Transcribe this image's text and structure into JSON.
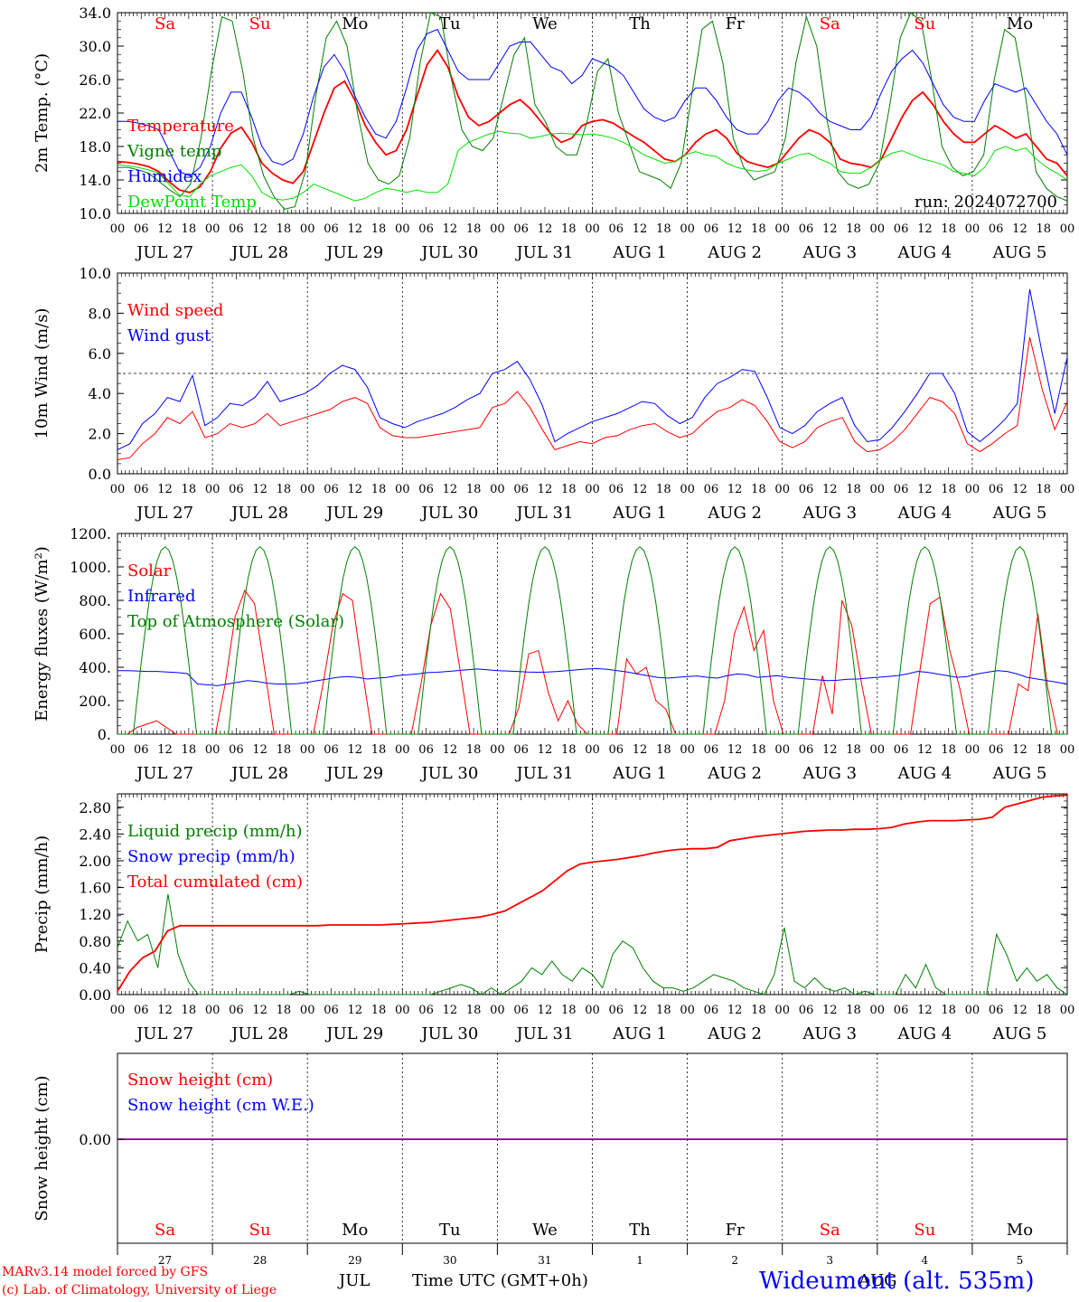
{
  "colors": {
    "red": "#ff0000",
    "green": "#008000",
    "blue": "#0000ff",
    "lime": "#00e000",
    "purple": "#800080",
    "grid": "#000000"
  },
  "days": [
    "JUL 27",
    "JUL 28",
    "JUL 29",
    "JUL 30",
    "JUL 31",
    "AUG  1",
    "AUG  2",
    "AUG  3",
    "AUG  4",
    "AUG  5"
  ],
  "weekdays": [
    "Sa",
    "Su",
    "Mo",
    "Tu",
    "We",
    "Th",
    "Fr",
    "Sa",
    "Su",
    "Mo"
  ],
  "weekday_colors": [
    "red",
    "red",
    "black",
    "black",
    "black",
    "black",
    "black",
    "red",
    "red",
    "black"
  ],
  "hour_ticks": [
    "00",
    "06",
    "12",
    "18"
  ],
  "bottom_day_numbers": [
    "27",
    "28",
    "29",
    "30",
    "31",
    "1",
    "2",
    "3",
    "4",
    "5"
  ],
  "footer": {
    "month_left": "JUL",
    "month_right": "AUG",
    "axis_title": "Time UTC (GMT+0h)",
    "credit_1": "MARv3.14 model forced by GFS",
    "credit_2": "(c) Lab. of Climatology, University of Liege",
    "station": "Wideumont (alt. 535m)"
  },
  "chart_data": [
    {
      "type": "line",
      "ylabel": "2m Temp. (°C)",
      "ylim": [
        10,
        34
      ],
      "yticks": [
        "10.0",
        "14.0",
        "18.0",
        "22.0",
        "26.0",
        "30.0",
        "34.0"
      ],
      "x_unit": "hours since JUL 27 00 UTC, 3-hourly",
      "run_label": "run: 2024072700",
      "series": [
        {
          "name": "Temperature",
          "color": "red",
          "values": [
            16.2,
            16.1,
            15.9,
            15.6,
            15.0,
            13.8,
            12.8,
            12.5,
            13.2,
            15.0,
            17.8,
            19.6,
            20.3,
            18.5,
            16.0,
            14.8,
            14.0,
            13.6,
            15.0,
            18.5,
            22.0,
            25.0,
            25.8,
            23.5,
            20.5,
            18.5,
            17.0,
            17.5,
            20.0,
            24.0,
            27.8,
            29.5,
            27.5,
            24.0,
            21.5,
            20.5,
            21.0,
            22.0,
            23.0,
            23.6,
            22.5,
            21.0,
            19.5,
            18.5,
            19.0,
            20.5,
            21.0,
            21.2,
            20.8,
            20.0,
            19.2,
            18.5,
            17.5,
            16.5,
            16.2,
            17.0,
            18.5,
            19.5,
            20.0,
            19.0,
            17.2,
            16.2,
            15.8,
            15.5,
            16.0,
            17.5,
            19.0,
            20.0,
            19.5,
            18.5,
            16.5,
            16.0,
            15.8,
            15.5,
            16.5,
            19.0,
            21.5,
            23.5,
            24.5,
            23.0,
            21.0,
            19.5,
            18.5,
            18.5,
            19.5,
            20.5,
            19.8,
            19.0,
            19.5,
            18.0,
            16.5,
            16.0,
            14.5
          ]
        },
        {
          "name": "Vigne temp",
          "color": "green",
          "values": [
            15.5,
            15.5,
            15.2,
            14.8,
            13.8,
            12.8,
            12.0,
            13.5,
            19.0,
            27.0,
            33.5,
            33.0,
            27.0,
            19.0,
            14.5,
            12.0,
            10.5,
            10.8,
            15.0,
            24.0,
            31.0,
            33.0,
            30.0,
            22.0,
            16.0,
            14.0,
            13.5,
            14.5,
            19.0,
            28.0,
            34.0,
            33.5,
            26.0,
            20.0,
            18.0,
            17.5,
            19.0,
            24.0,
            29.0,
            31.0,
            23.0,
            21.0,
            18.0,
            17.0,
            17.0,
            21.0,
            27.0,
            28.5,
            22.0,
            18.5,
            15.0,
            14.5,
            14.0,
            13.0,
            16.0,
            24.0,
            32.0,
            33.0,
            28.0,
            19.0,
            15.5,
            14.0,
            14.5,
            15.0,
            19.0,
            28.0,
            33.5,
            30.0,
            21.0,
            15.0,
            13.5,
            13.0,
            13.5,
            16.0,
            23.0,
            31.0,
            34.0,
            33.0,
            26.0,
            18.0,
            15.5,
            14.5,
            15.0,
            17.0,
            26.0,
            32.0,
            31.0,
            24.0,
            15.0,
            13.0,
            12.0,
            11.5
          ]
        },
        {
          "name": "Humidex",
          "color": "blue",
          "values": [
            21.0,
            21.0,
            20.8,
            20.5,
            20.0,
            17.5,
            15.0,
            14.5,
            15.5,
            18.0,
            22.0,
            24.5,
            24.5,
            21.5,
            18.0,
            16.2,
            15.8,
            16.5,
            19.5,
            24.0,
            27.5,
            29.0,
            27.0,
            24.0,
            21.5,
            19.5,
            19.0,
            21.0,
            25.0,
            29.5,
            31.5,
            32.0,
            29.5,
            27.0,
            26.0,
            26.0,
            26.0,
            28.0,
            30.0,
            30.5,
            30.5,
            29.0,
            27.5,
            27.0,
            25.5,
            26.5,
            28.5,
            28.0,
            27.5,
            26.5,
            24.5,
            22.5,
            21.5,
            21.0,
            21.5,
            23.5,
            25.0,
            25.0,
            23.5,
            21.5,
            20.0,
            19.5,
            19.5,
            21.0,
            23.5,
            25.0,
            24.5,
            23.5,
            22.0,
            21.0,
            20.5,
            20.0,
            20.0,
            21.5,
            24.5,
            27.0,
            28.5,
            29.5,
            28.0,
            25.5,
            23.0,
            21.5,
            21.0,
            21.0,
            23.5,
            25.5,
            25.0,
            24.5,
            25.0,
            23.0,
            21.0,
            19.5,
            17.0
          ]
        },
        {
          "name": "DewPoint Temp",
          "color": "lime",
          "values": [
            15.8,
            15.7,
            15.5,
            15.2,
            14.8,
            13.5,
            12.2,
            12.0,
            13.5,
            14.5,
            15.0,
            15.5,
            15.8,
            14.5,
            12.5,
            11.8,
            11.6,
            11.8,
            12.5,
            13.5,
            13.0,
            12.5,
            12.0,
            11.5,
            11.8,
            12.5,
            13.0,
            12.8,
            12.5,
            12.8,
            12.5,
            12.5,
            13.5,
            17.5,
            18.5,
            19.0,
            19.5,
            19.8,
            19.6,
            19.5,
            19.0,
            19.2,
            19.5,
            19.6,
            19.5,
            19.4,
            19.5,
            19.3,
            19.0,
            18.5,
            17.8,
            17.0,
            16.5,
            16.0,
            16.2,
            17.0,
            17.4,
            17.0,
            16.8,
            16.0,
            15.5,
            15.2,
            15.0,
            15.2,
            16.0,
            16.5,
            17.0,
            17.2,
            16.5,
            16.0,
            15.0,
            14.8,
            14.8,
            15.5,
            16.5,
            17.2,
            17.5,
            17.0,
            16.5,
            16.2,
            15.8,
            15.0,
            14.8,
            14.5,
            15.5,
            17.5,
            18.0,
            17.5,
            17.8,
            16.5,
            15.5,
            14.8,
            14.0
          ]
        }
      ]
    },
    {
      "type": "line",
      "ylabel": "10m Wind (m/s)",
      "ylim": [
        0,
        10
      ],
      "yticks": [
        "0.0",
        "2.0",
        "4.0",
        "6.0",
        "8.0",
        "10.0"
      ],
      "reference_line": 5.0,
      "series": [
        {
          "name": "Wind speed",
          "color": "red",
          "values": [
            0.7,
            0.8,
            1.5,
            2.0,
            2.8,
            2.5,
            3.1,
            1.8,
            2.0,
            2.5,
            2.3,
            2.5,
            3.0,
            2.4,
            2.6,
            2.8,
            3.0,
            3.2,
            3.6,
            3.8,
            3.5,
            2.3,
            1.9,
            1.8,
            1.8,
            1.9,
            2.0,
            2.1,
            2.2,
            2.3,
            3.3,
            3.5,
            4.1,
            3.3,
            2.2,
            1.2,
            1.4,
            1.6,
            1.5,
            1.8,
            1.9,
            2.2,
            2.4,
            2.5,
            2.1,
            1.8,
            2.0,
            2.6,
            3.1,
            3.3,
            3.7,
            3.4,
            2.6,
            1.6,
            1.3,
            1.6,
            2.3,
            2.6,
            2.8,
            1.6,
            1.1,
            1.2,
            1.6,
            2.2,
            3.0,
            3.8,
            3.6,
            3.0,
            1.5,
            1.1,
            1.5,
            2.0,
            2.4,
            6.8,
            4.2,
            2.2,
            3.6
          ]
        },
        {
          "name": "Wind gust",
          "color": "blue",
          "values": [
            1.2,
            1.5,
            2.5,
            3.0,
            3.8,
            3.6,
            4.9,
            2.4,
            2.8,
            3.5,
            3.4,
            3.8,
            4.6,
            3.6,
            3.8,
            4.0,
            4.4,
            5.0,
            5.4,
            5.2,
            4.3,
            2.8,
            2.5,
            2.3,
            2.6,
            2.8,
            3.0,
            3.3,
            3.7,
            4.0,
            5.0,
            5.2,
            5.6,
            4.7,
            3.4,
            1.6,
            2.0,
            2.3,
            2.6,
            2.8,
            3.0,
            3.3,
            3.6,
            3.5,
            2.9,
            2.5,
            2.8,
            3.8,
            4.5,
            4.8,
            5.2,
            5.1,
            3.8,
            2.3,
            2.0,
            2.4,
            3.1,
            3.5,
            3.8,
            2.4,
            1.6,
            1.7,
            2.3,
            3.1,
            4.0,
            5.0,
            5.0,
            4.0,
            2.1,
            1.6,
            2.1,
            2.7,
            3.5,
            9.2,
            6.0,
            3.0,
            5.8
          ]
        }
      ]
    },
    {
      "type": "line",
      "ylabel": "Energy fluxes (W/m²)",
      "ylim": [
        0,
        1200
      ],
      "yticks": [
        "0.",
        "200.",
        "400.",
        "600.",
        "800.",
        "1000.",
        "1200."
      ],
      "series": [
        {
          "name": "Solar",
          "color": "red",
          "values": [
            0,
            0,
            40,
            60,
            80,
            40,
            0,
            0,
            0,
            0,
            0,
            300,
            700,
            860,
            780,
            400,
            0,
            0,
            0,
            0,
            0,
            300,
            650,
            840,
            800,
            380,
            0,
            0,
            0,
            0,
            0,
            300,
            650,
            840,
            750,
            380,
            0,
            0,
            0,
            0,
            0,
            160,
            480,
            500,
            250,
            80,
            200,
            60,
            0,
            0,
            0,
            0,
            450,
            360,
            400,
            200,
            150,
            0,
            0,
            0,
            0,
            0,
            200,
            600,
            760,
            500,
            620,
            200,
            0,
            0,
            0,
            0,
            350,
            120,
            800,
            650,
            300,
            0,
            0,
            0,
            0,
            0,
            400,
            780,
            820,
            500,
            280,
            0,
            0,
            0,
            0,
            0,
            300,
            260,
            720,
            280,
            0,
            0
          ]
        },
        {
          "name": "Infrared",
          "color": "blue",
          "values": [
            380,
            380,
            378,
            375,
            375,
            372,
            368,
            362,
            300,
            295,
            290,
            300,
            310,
            320,
            315,
            305,
            300,
            300,
            302,
            310,
            320,
            330,
            340,
            345,
            340,
            330,
            335,
            340,
            350,
            355,
            360,
            368,
            370,
            375,
            380,
            385,
            390,
            385,
            380,
            378,
            375,
            372,
            370,
            372,
            375,
            380,
            385,
            390,
            392,
            388,
            380,
            372,
            360,
            350,
            340,
            335,
            340,
            345,
            348,
            340,
            335,
            350,
            360,
            355,
            340,
            345,
            350,
            340,
            335,
            330,
            325,
            320,
            322,
            328,
            330,
            335,
            340,
            345,
            350,
            360,
            375,
            370,
            360,
            350,
            340,
            345,
            360,
            370,
            380,
            375,
            360,
            340,
            330,
            320,
            310,
            300
          ]
        },
        {
          "name": "Top of Atmosphere (Solar)",
          "color": "green",
          "peak": 1120
        }
      ]
    },
    {
      "type": "line",
      "ylabel": "Precip (mm/h)",
      "ylim": [
        0,
        3.0
      ],
      "yticks": [
        "0.00",
        "0.40",
        "0.80",
        "1.20",
        "1.60",
        "2.00",
        "2.40",
        "2.80"
      ],
      "series": [
        {
          "name": "Liquid precip (mm/h)",
          "color": "green",
          "values": [
            0.7,
            1.1,
            0.8,
            0.9,
            0.4,
            1.5,
            0.6,
            0.2,
            0.0,
            0.0,
            0.0,
            0.0,
            0.0,
            0.0,
            0.0,
            0.0,
            0.0,
            0.0,
            0.05,
            0.0,
            0.0,
            0.0,
            0.0,
            0.0,
            0.0,
            0.0,
            0.0,
            0.0,
            0.0,
            0.0,
            0.0,
            0.0,
            0.05,
            0.1,
            0.15,
            0.1,
            0.0,
            0.1,
            0.0,
            0.1,
            0.2,
            0.4,
            0.3,
            0.5,
            0.3,
            0.2,
            0.4,
            0.3,
            0.1,
            0.6,
            0.8,
            0.7,
            0.4,
            0.2,
            0.1,
            0.1,
            0.05,
            0.1,
            0.2,
            0.3,
            0.25,
            0.2,
            0.1,
            0.05,
            0.0,
            0.3,
            1.0,
            0.2,
            0.1,
            0.25,
            0.1,
            0.05,
            0.1,
            0.0,
            0.05,
            0.0,
            0.0,
            0.0,
            0.3,
            0.1,
            0.45,
            0.1,
            0.0,
            0.0,
            0.0,
            0.0,
            0.0,
            0.9,
            0.6,
            0.2,
            0.4,
            0.2,
            0.3,
            0.1,
            0.0
          ]
        },
        {
          "name": "Snow precip (mm/h)",
          "color": "blue",
          "values": []
        },
        {
          "name": "Total cumulated (cm)",
          "color": "red",
          "values": [
            0.05,
            0.35,
            0.55,
            0.65,
            0.95,
            1.03,
            1.03,
            1.03,
            1.03,
            1.03,
            1.03,
            1.03,
            1.03,
            1.03,
            1.03,
            1.03,
            1.03,
            1.04,
            1.04,
            1.04,
            1.04,
            1.04,
            1.05,
            1.06,
            1.07,
            1.08,
            1.1,
            1.12,
            1.14,
            1.16,
            1.2,
            1.25,
            1.35,
            1.45,
            1.55,
            1.7,
            1.85,
            1.95,
            1.98,
            2.0,
            2.02,
            2.05,
            2.08,
            2.12,
            2.15,
            2.17,
            2.18,
            2.18,
            2.2,
            2.3,
            2.33,
            2.36,
            2.38,
            2.4,
            2.42,
            2.44,
            2.45,
            2.46,
            2.46,
            2.47,
            2.47,
            2.48,
            2.5,
            2.55,
            2.58,
            2.6,
            2.6,
            2.6,
            2.61,
            2.62,
            2.65,
            2.8,
            2.85,
            2.9,
            2.95,
            2.97,
            2.98
          ]
        }
      ]
    },
    {
      "type": "line",
      "ylabel": "Snow height (cm)",
      "yticks": [
        "0.00"
      ],
      "series": [
        {
          "name": "Snow height (cm)",
          "color": "red",
          "values": [
            0,
            0
          ]
        },
        {
          "name": "Snow height (cm W.E.)",
          "color": "blue",
          "values": [
            0,
            0
          ]
        }
      ]
    }
  ]
}
